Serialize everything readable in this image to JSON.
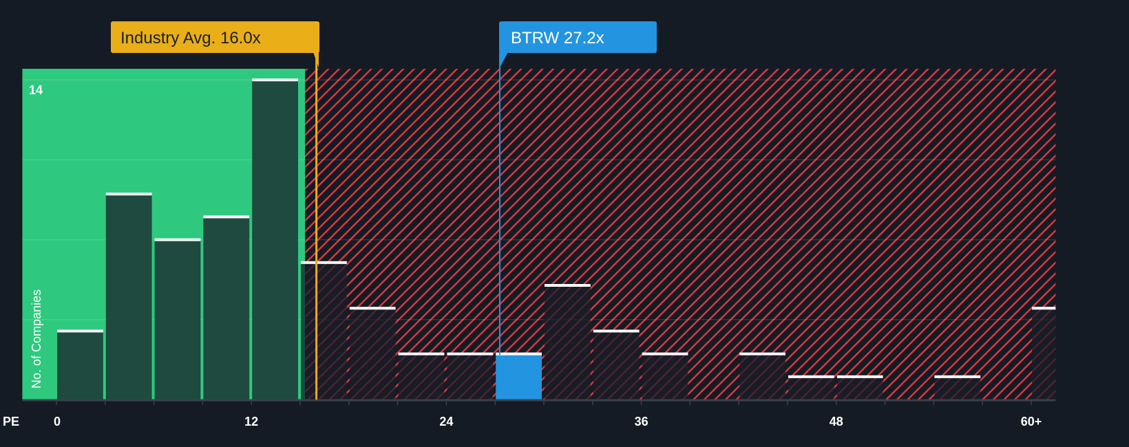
{
  "chart_data": {
    "type": "bar",
    "title": "",
    "xlabel": "PE",
    "ylabel": "No. of Companies",
    "bin_width": 3,
    "bins_start": [
      0,
      3,
      6,
      9,
      12,
      15,
      18,
      21,
      24,
      27,
      30,
      33,
      36,
      39,
      42,
      45,
      48,
      51,
      54,
      57,
      60
    ],
    "values": [
      3,
      9,
      7,
      8,
      14,
      6,
      4,
      2,
      2,
      2,
      5,
      3,
      2,
      0,
      2,
      1,
      1,
      0,
      1,
      0,
      4
    ],
    "highlight_bin_start": 27,
    "x_ticks": [
      0,
      12,
      24,
      36,
      48,
      60
    ],
    "x_tick_labels": [
      "0",
      "12",
      "24",
      "36",
      "48",
      "60+"
    ],
    "y_tick_labels": [
      "14"
    ],
    "ylim": [
      0,
      14.5
    ],
    "xlim": [
      -2.1,
      61.5
    ],
    "industry_avg": {
      "value": 16.0,
      "label": "Industry Avg. 16.0x"
    },
    "company": {
      "value": 27.2,
      "label": "BTRW 27.2x"
    },
    "fair_zone_end": 15.3
  },
  "colors": {
    "background": "#151b24",
    "green": "#2ec97f",
    "bar_dark": "#1f4a3f",
    "hatch": "#e0383e",
    "industry": "#e9ae18",
    "company": "#2394e0"
  }
}
